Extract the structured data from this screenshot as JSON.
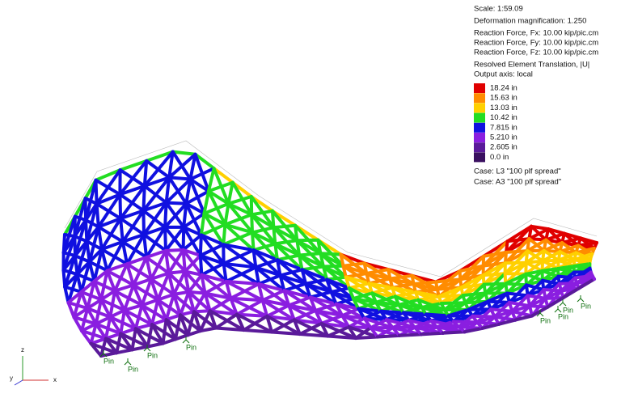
{
  "info": [
    "Scale: 1:59.09",
    "Deformation magnification: 1.250",
    "Reaction Force, Fx: 10.00 kip/pic.cm",
    "Reaction Force, Fy: 10.00 kip/pic.cm",
    "Reaction Force, Fz: 10.00 kip/pic.cm",
    "Resolved Element Translation, |U|",
    "Output axis: local"
  ],
  "legend": [
    {
      "label": "18.24 in",
      "color": "#e00000"
    },
    {
      "label": "15.63 in",
      "color": "#ff8c00"
    },
    {
      "label": "13.03 in",
      "color": "#ffd000"
    },
    {
      "label": "10.42 in",
      "color": "#22dd22"
    },
    {
      "label": "7.815 in",
      "color": "#1010e0"
    },
    {
      "label": "5.210 in",
      "color": "#8a1ee0"
    },
    {
      "label": "2.605 in",
      "color": "#5a1a9a"
    },
    {
      "label": "0.0 in",
      "color": "#3a1060"
    }
  ],
  "cases": [
    "Case: L3 \"100 plf spread\"",
    "Case: A3 \"100 plf spread\""
  ],
  "pins": [
    "Pin",
    "Pin",
    "Pin",
    "Pin",
    "Pin",
    "Pin",
    "Pin",
    "Pin"
  ],
  "axes": {
    "z": "z",
    "x": "x",
    "y": "y"
  }
}
